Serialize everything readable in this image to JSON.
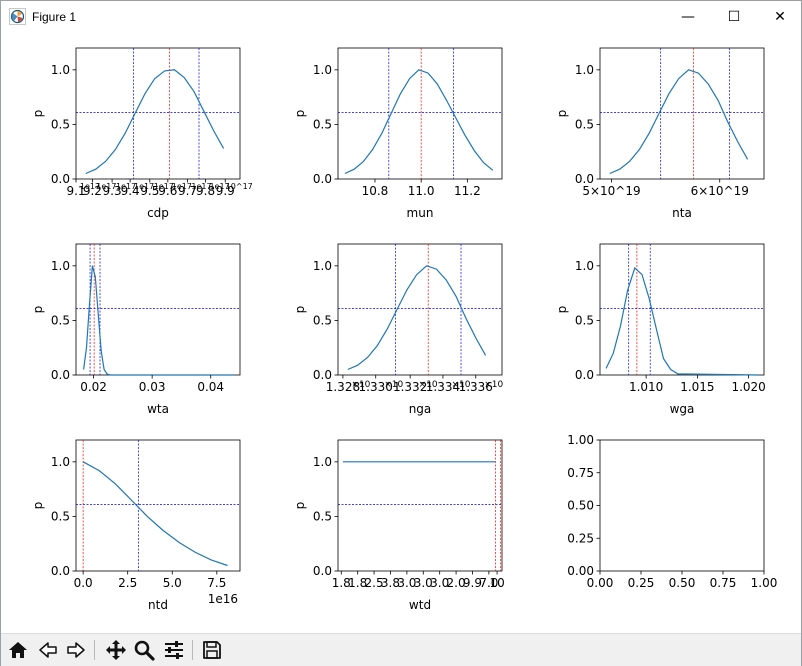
{
  "window": {
    "title": "Figure 1",
    "controls": {
      "minimize": "—",
      "maximize": "☐",
      "close": "✕"
    }
  },
  "toolbar": {
    "buttons": [
      {
        "name": "home-button",
        "icon": "home-icon"
      },
      {
        "name": "back-button",
        "icon": "arrow-left-icon"
      },
      {
        "name": "forward-button",
        "icon": "arrow-right-icon"
      },
      {
        "name": "pan-button",
        "icon": "move-icon"
      },
      {
        "name": "zoom-button",
        "icon": "zoom-icon"
      },
      {
        "name": "configure-subplots-button",
        "icon": "sliders-icon"
      },
      {
        "name": "save-button",
        "icon": "save-icon"
      }
    ]
  },
  "colors": {
    "curve": "#1f77b4",
    "red_line": "#ff0000",
    "blue_line": "#0000ff"
  },
  "chart_data": [
    {
      "type": "line",
      "xlabel": "cdp",
      "ylabel": "p",
      "xlim": [
        0,
        1
      ],
      "ylim": [
        0,
        1.2
      ],
      "x": [
        0.06,
        0.12,
        0.18,
        0.24,
        0.3,
        0.36,
        0.42,
        0.48,
        0.54,
        0.6,
        0.66,
        0.72,
        0.78,
        0.84,
        0.9
      ],
      "y": [
        0.05,
        0.09,
        0.16,
        0.27,
        0.42,
        0.6,
        0.78,
        0.92,
        0.99,
        1.0,
        0.93,
        0.8,
        0.62,
        0.44,
        0.28
      ],
      "xticks": [
        0.0,
        0.1,
        0.22,
        0.33,
        0.45,
        0.56,
        0.68,
        0.79,
        0.91
      ],
      "xtick_labels": [
        "9.1",
        "9.2",
        "9.3",
        "9.4",
        "9.5",
        "9.6",
        "9.7",
        "9.8",
        "9.9"
      ],
      "xtick_labels_offset": [
        "1e17",
        "1e17",
        "1e17",
        "1e17",
        "1e17",
        "1e17",
        "1e17",
        "1e17",
        "10^17"
      ],
      "yticks": [
        0.0,
        0.5,
        1.0
      ],
      "ytick_labels": [
        "0.0",
        "0.5",
        "1.0"
      ],
      "vlines": [
        {
          "x": 0.35,
          "color": "blue"
        },
        {
          "x": 0.57,
          "color": "red"
        },
        {
          "x": 0.75,
          "color": "blue"
        }
      ],
      "hline": 0.61
    },
    {
      "type": "line",
      "xlabel": "mun",
      "ylabel": "p",
      "xlim": [
        10.64,
        11.35
      ],
      "ylim": [
        0,
        1.2
      ],
      "x": [
        10.67,
        10.71,
        10.75,
        10.79,
        10.83,
        10.87,
        10.91,
        10.95,
        10.99,
        11.03,
        11.07,
        11.11,
        11.15,
        11.19,
        11.23,
        11.27,
        11.31
      ],
      "y": [
        0.05,
        0.09,
        0.16,
        0.27,
        0.42,
        0.6,
        0.78,
        0.92,
        1.0,
        0.97,
        0.87,
        0.72,
        0.56,
        0.4,
        0.26,
        0.15,
        0.08
      ],
      "xticks": [
        10.8,
        11.0,
        11.2
      ],
      "xtick_labels": [
        "10.8",
        "11.0",
        "11.2"
      ],
      "yticks": [
        0.0,
        0.5,
        1.0
      ],
      "ytick_labels": [
        "0.0",
        "0.5",
        "1.0"
      ],
      "vlines": [
        {
          "x": 10.86,
          "color": "blue"
        },
        {
          "x": 11.0,
          "color": "red"
        },
        {
          "x": 11.14,
          "color": "blue"
        }
      ],
      "hline": 0.61
    },
    {
      "type": "line",
      "xlabel": "nta",
      "ylabel": "p",
      "xlim": [
        0,
        1
      ],
      "ylim": [
        0,
        1.2
      ],
      "x": [
        0.06,
        0.12,
        0.18,
        0.24,
        0.3,
        0.36,
        0.42,
        0.48,
        0.54,
        0.6,
        0.66,
        0.72,
        0.78,
        0.84,
        0.9
      ],
      "y": [
        0.05,
        0.09,
        0.16,
        0.27,
        0.42,
        0.6,
        0.78,
        0.92,
        1.0,
        0.97,
        0.87,
        0.72,
        0.52,
        0.34,
        0.18
      ],
      "xticks": [
        0.07,
        0.73
      ],
      "xtick_labels": [
        "5×10^19",
        "6×10^19"
      ],
      "yticks": [
        0.0,
        0.5,
        1.0
      ],
      "ytick_labels": [
        "0.0",
        "0.5",
        "1.0"
      ],
      "vlines": [
        {
          "x": 0.37,
          "color": "blue"
        },
        {
          "x": 0.57,
          "color": "red"
        },
        {
          "x": 0.79,
          "color": "blue"
        }
      ],
      "hline": 0.61
    },
    {
      "type": "line",
      "xlabel": "wta",
      "ylabel": "p",
      "xlim": [
        0.017,
        0.045
      ],
      "ylim": [
        0,
        1.2
      ],
      "x": [
        0.0183,
        0.0188,
        0.0193,
        0.0198,
        0.0203,
        0.0208,
        0.0213,
        0.0218,
        0.0223,
        0.0228,
        0.044
      ],
      "y": [
        0.05,
        0.25,
        0.65,
        1.0,
        0.9,
        0.55,
        0.22,
        0.05,
        0.01,
        0.0,
        0.0
      ],
      "xticks": [
        0.02,
        0.03,
        0.04
      ],
      "xtick_labels": [
        "0.02",
        "0.03",
        "0.04"
      ],
      "yticks": [
        0.0,
        0.5,
        1.0
      ],
      "ytick_labels": [
        "0.0",
        "0.5",
        "1.0"
      ],
      "vlines": [
        {
          "x": 0.0194,
          "color": "blue"
        },
        {
          "x": 0.0201,
          "color": "red"
        },
        {
          "x": 0.0211,
          "color": "blue"
        }
      ],
      "hline": 0.61
    },
    {
      "type": "line",
      "xlabel": "nga",
      "ylabel": "p",
      "xlim": [
        0,
        1
      ],
      "ylim": [
        0,
        1.2
      ],
      "x": [
        0.06,
        0.12,
        0.18,
        0.24,
        0.3,
        0.36,
        0.42,
        0.48,
        0.54,
        0.6,
        0.66,
        0.72,
        0.78,
        0.84,
        0.9
      ],
      "y": [
        0.05,
        0.09,
        0.16,
        0.27,
        0.42,
        0.6,
        0.78,
        0.92,
        1.0,
        0.97,
        0.87,
        0.72,
        0.52,
        0.34,
        0.18
      ],
      "xticks": [
        0.03,
        0.23,
        0.44,
        0.64,
        0.84
      ],
      "xtick_labels": [
        "1.328",
        "1.330",
        "1.332",
        "1.334",
        "1.336"
      ],
      "yticks": [
        0.0,
        0.5,
        1.0
      ],
      "ytick_labels": [
        "0.0",
        "0.5",
        "1.0"
      ],
      "vlines": [
        {
          "x": 0.35,
          "color": "blue"
        },
        {
          "x": 0.55,
          "color": "red"
        },
        {
          "x": 0.75,
          "color": "blue"
        }
      ],
      "hline": 0.61
    },
    {
      "type": "line",
      "xlabel": "wga",
      "ylabel": "p",
      "xlim": [
        1.0055,
        1.0215
      ],
      "ylim": [
        0,
        1.2
      ],
      "x": [
        1.0061,
        1.0068,
        1.0075,
        1.0082,
        1.0089,
        1.0096,
        1.0103,
        1.011,
        1.0117,
        1.0124,
        1.0131,
        1.021
      ],
      "y": [
        0.06,
        0.2,
        0.45,
        0.78,
        0.98,
        0.92,
        0.7,
        0.42,
        0.15,
        0.05,
        0.01,
        0.0
      ],
      "xticks": [
        1.01,
        1.015,
        1.02
      ],
      "xtick_labels": [
        "1.010",
        "1.015",
        "1.020"
      ],
      "yticks": [
        0.0,
        0.5,
        1.0
      ],
      "ytick_labels": [
        "0.0",
        "0.5",
        "1.0"
      ],
      "vlines": [
        {
          "x": 1.0083,
          "color": "blue"
        },
        {
          "x": 1.0091,
          "color": "red"
        },
        {
          "x": 1.0104,
          "color": "blue"
        }
      ],
      "hline": 0.61
    },
    {
      "type": "line",
      "xlabel": "ntd",
      "ylabel": "p",
      "xlim": [
        -0.4,
        8.8
      ],
      "ylim": [
        0,
        1.2
      ],
      "x": [
        0,
        0.9,
        1.8,
        2.7,
        3.6,
        4.5,
        5.4,
        6.3,
        7.2,
        8.1
      ],
      "y": [
        1.0,
        0.92,
        0.8,
        0.65,
        0.5,
        0.37,
        0.26,
        0.17,
        0.1,
        0.05
      ],
      "xticks": [
        0,
        2.5,
        5.0,
        7.5
      ],
      "xtick_labels": [
        "0.0",
        "2.5",
        "5.0",
        "7.5"
      ],
      "offset_text": "1e16",
      "yticks": [
        0.0,
        0.5,
        1.0
      ],
      "ytick_labels": [
        "0.0",
        "0.5",
        "1.0"
      ],
      "vlines": [
        {
          "x": 0.0,
          "color": "red"
        },
        {
          "x": 3.1,
          "color": "blue"
        }
      ],
      "hline": 0.61
    },
    {
      "type": "line",
      "xlabel": "wtd",
      "ylabel": "p",
      "xlim": [
        0,
        1
      ],
      "ylim": [
        0,
        1.2
      ],
      "x": [
        0.03,
        0.96
      ],
      "y": [
        1.0,
        1.0
      ],
      "xticks": [
        0.02,
        0.12,
        0.22,
        0.32,
        0.42,
        0.52,
        0.62,
        0.72,
        0.82,
        0.92,
        0.97
      ],
      "xtick_labels": [
        "1.8",
        "1.8",
        "2.5",
        "3.8",
        "3.0",
        "3.0",
        "3.0",
        "2.0",
        "9.9",
        "7.0",
        "10"
      ],
      "yticks": [
        0.0,
        0.5,
        1.0
      ],
      "ytick_labels": [
        "0.0",
        "0.5",
        "1.0"
      ],
      "vlines": [
        {
          "x": 0.96,
          "color": "red"
        },
        {
          "x": 0.99,
          "color": "red"
        }
      ],
      "hline": 0.61
    },
    {
      "type": "line",
      "xlabel": "",
      "ylabel": "",
      "xlim": [
        0,
        1
      ],
      "ylim": [
        0,
        1
      ],
      "x": [],
      "y": [],
      "xticks": [
        0.0,
        0.25,
        0.5,
        0.75,
        1.0
      ],
      "xtick_labels": [
        "0.00",
        "0.25",
        "0.50",
        "0.75",
        "1.00"
      ],
      "yticks": [
        0.0,
        0.25,
        0.5,
        0.75,
        1.0
      ],
      "ytick_labels": [
        "0.00",
        "0.25",
        "0.50",
        "0.75",
        "1.00"
      ],
      "vlines": [],
      "hline": null
    }
  ]
}
